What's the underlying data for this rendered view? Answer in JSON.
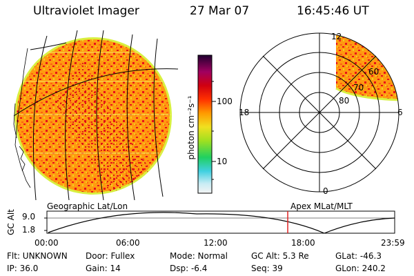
{
  "header": {
    "instrument": "Ultraviolet Imager",
    "date": "27 Mar 07",
    "time": "16:45:46 UT"
  },
  "colorbar": {
    "label": "photon cm⁻²s⁻¹",
    "ticks": [
      "100",
      "10"
    ]
  },
  "polar": {
    "mlt_labels": {
      "top": "12",
      "left": "18",
      "right": "6",
      "bottom": "0"
    },
    "lat_labels": [
      "60",
      "70",
      "80"
    ]
  },
  "map_labels": {
    "left": "Geographic Lat/Lon",
    "right": "Apex MLat/MLT"
  },
  "orbit": {
    "ylabel": "GC Alt",
    "yticks": [
      "9.0",
      "1.8"
    ],
    "xticks": [
      "00:00",
      "06:00",
      "12:00",
      "18:00",
      "23:59"
    ]
  },
  "info": {
    "flt": "Flt: UNKNOWN",
    "ip": "IP: 36.0",
    "door": "Door: Fullex",
    "gain": "Gain: 14",
    "mode": "Mode: Normal",
    "dsp": "Dsp:   -6.4",
    "gcalt": "GC Alt: 5.3 Re",
    "seq": "Seq: 39",
    "glat": "GLat: -46.3",
    "glon": "GLon: 240.2"
  },
  "colors": {
    "disk_base": "#ff9800",
    "disk_speckle": "#e8101a",
    "disk_rim": "#d8f040",
    "marker": "#e02020"
  }
}
